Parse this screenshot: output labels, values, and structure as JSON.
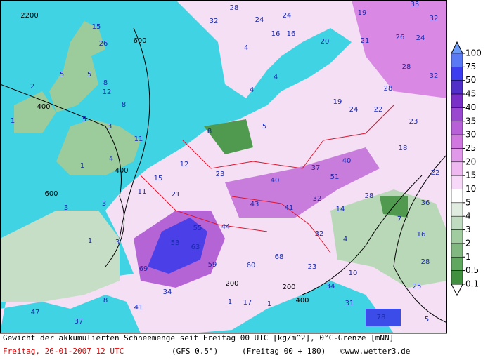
{
  "footer": {
    "description": "Gewicht der akkumulierten Schneemenge seit Freitag 00 UTC [kg/m^2], 0°C-Grenze [mNN]",
    "date": "Freitag, 26-01-2007  12 UTC",
    "model": "(GFS 0.5°)",
    "run": "(Freitag 00 + 180)",
    "copyright": "©www.wetter3.de"
  },
  "colorbar": {
    "ticks": [
      100,
      75,
      50,
      45,
      40,
      35,
      30,
      25,
      20,
      15,
      10,
      5,
      4,
      3,
      2,
      1,
      0.5,
      0.1
    ],
    "colors": [
      "#5a7af5",
      "#3c3cf0",
      "#5030c8",
      "#7a30c8",
      "#9a48d0",
      "#b860d8",
      "#d078e0",
      "#e098e8",
      "#f0b8f0",
      "#f8d8f8",
      "#ffffff",
      "#e0ece0",
      "#c0dcc0",
      "#a0cca0",
      "#80b880",
      "#60a860",
      "#409040"
    ],
    "top_color": "#6a9af8",
    "bottom_color": "#ffffff"
  },
  "map_labels": [
    "2200",
    "15",
    "26",
    "600",
    "32",
    "28",
    "24",
    "24",
    "16",
    "16",
    "19",
    "35",
    "32",
    "21",
    "20",
    "26",
    "24",
    "28",
    "32",
    "4",
    "4",
    "4",
    "5",
    "5",
    "12",
    "8",
    "2",
    "400",
    "1",
    "8",
    "5",
    "3",
    "5",
    "8",
    "19",
    "24",
    "22",
    "28",
    "23",
    "18",
    "11",
    "4",
    "1",
    "400",
    "12",
    "15",
    "23",
    "40",
    "37",
    "40",
    "51",
    "22",
    "21",
    "11",
    "600",
    "3",
    "3",
    "43",
    "41",
    "32",
    "28",
    "14",
    "36",
    "44",
    "55",
    "53",
    "63",
    "7",
    "16",
    "4",
    "32",
    "1",
    "3",
    "68",
    "59",
    "60",
    "23",
    "10",
    "28",
    "69",
    "34",
    "34",
    "25",
    "8",
    "1",
    "17",
    "200",
    "200",
    "1",
    "41",
    "47",
    "31",
    "37",
    "78",
    "5",
    "400"
  ]
}
